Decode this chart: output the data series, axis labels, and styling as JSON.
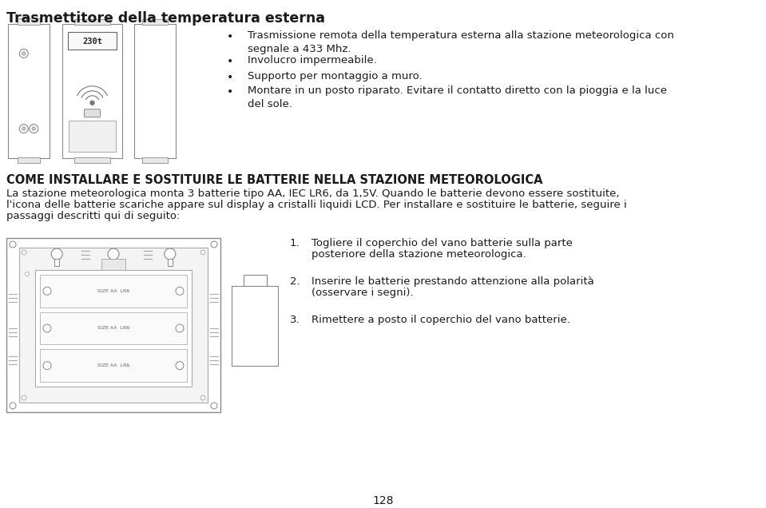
{
  "bg_color": "#ffffff",
  "text_color": "#1a1a1a",
  "title1": "Trasmettitore della temperatura esterna",
  "bullets1": [
    "Trasmissione remota della temperatura esterna alla stazione meteorologica con\nsegnale a 433 Mhz.",
    "Involucro impermeabile.",
    "Supporto per montaggio a muro.",
    "Montare in un posto riparato. Evitare il contatto diretto con la pioggia e la luce\ndel sole."
  ],
  "title2": "COME INSTALLARE E SOSTITUIRE LE BATTERIE NELLA STAZIONE METEOROLOGICA",
  "body2_lines": [
    "La stazione meteorologica monta 3 batterie tipo AA, IEC LR6, da 1,5V. Quando le batterie devono essere sostituite,",
    "l'icona delle batterie scariche appare sul display a cristalli liquidi LCD. Per installare e sostituire le batterie, seguire i",
    "passaggi descritti qui di seguito:"
  ],
  "numbered": [
    [
      "Togliere il coperchio del vano batterie sulla parte",
      "posteriore della stazione meteorologica."
    ],
    [
      "Inserire le batterie prestando attenzione alla polarità",
      "(osservare i segni)."
    ],
    [
      "Rimettere a posto il coperchio del vano batterie."
    ]
  ],
  "page_number": "128"
}
